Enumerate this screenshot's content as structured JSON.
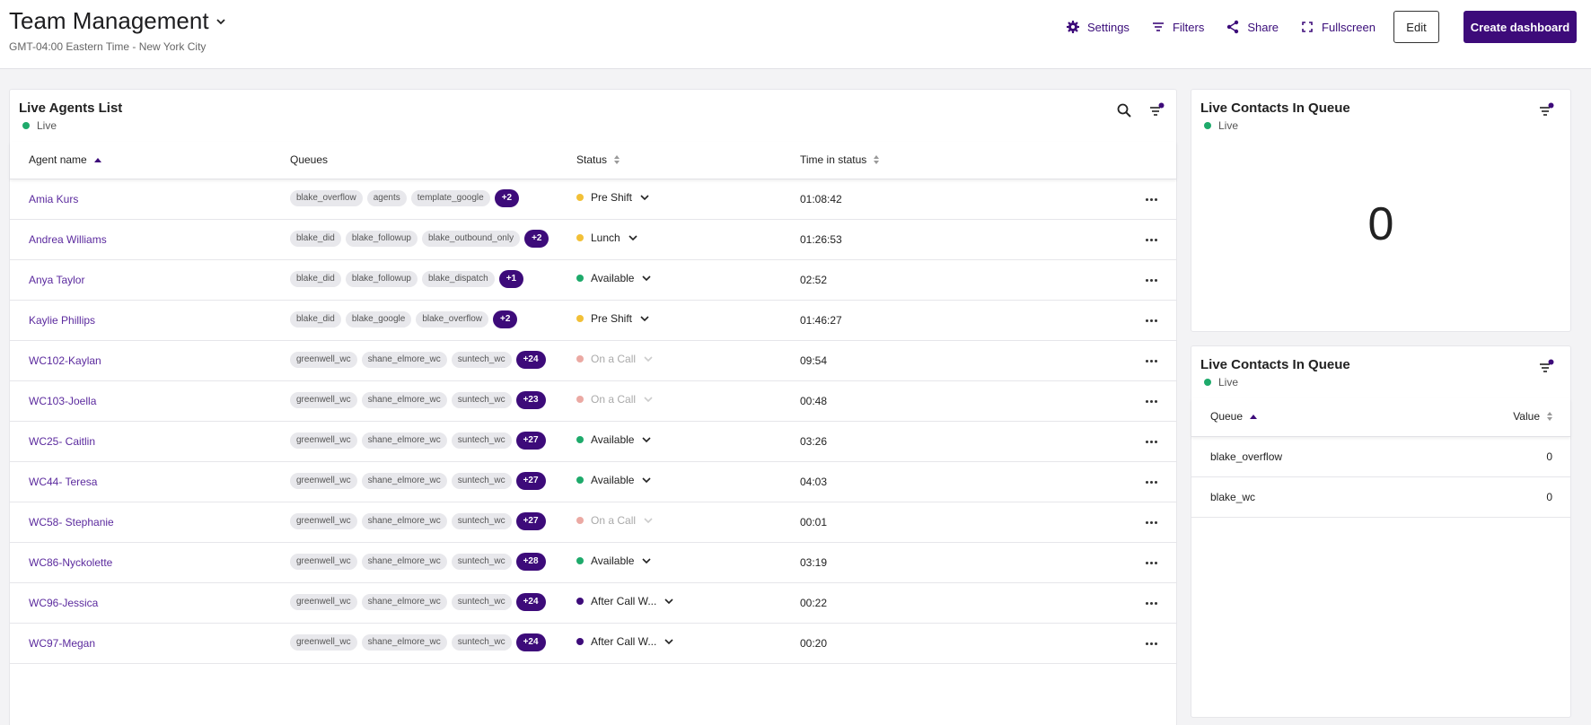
{
  "header": {
    "title": "Team Management",
    "subtitle": "GMT-04:00 Eastern Time - New York City",
    "actions": {
      "settings": "Settings",
      "filters": "Filters",
      "share": "Share",
      "fullscreen": "Fullscreen",
      "edit": "Edit",
      "create": "Create dashboard"
    }
  },
  "colors": {
    "accent": "#3d0b7a",
    "live": "#1eaa6b",
    "pre_shift": "#f2c037",
    "lunch": "#f2c037",
    "available": "#1eaa6b",
    "on_a_call": "#e6948c",
    "after_call": "#3d0b7a"
  },
  "agents_panel": {
    "title": "Live Agents List",
    "live": "Live",
    "columns": [
      "Agent name",
      "Queues",
      "Status",
      "Time in status"
    ],
    "rows": [
      {
        "name": "Amia Kurs",
        "queues": [
          "blake_overflow",
          "agents",
          "template_google"
        ],
        "more": "+2",
        "status": "Pre Shift",
        "status_color": "#f2c037",
        "dim": false,
        "time": "01:08:42"
      },
      {
        "name": "Andrea Williams",
        "queues": [
          "blake_did",
          "blake_followup",
          "blake_outbound_only"
        ],
        "more": "+2",
        "status": "Lunch",
        "status_color": "#f2c037",
        "dim": false,
        "time": "01:26:53"
      },
      {
        "name": "Anya Taylor",
        "queues": [
          "blake_did",
          "blake_followup",
          "blake_dispatch"
        ],
        "more": "+1",
        "status": "Available",
        "status_color": "#1eaa6b",
        "dim": false,
        "time": "02:52"
      },
      {
        "name": "Kaylie Phillips",
        "queues": [
          "blake_did",
          "blake_google",
          "blake_overflow"
        ],
        "more": "+2",
        "status": "Pre Shift",
        "status_color": "#f2c037",
        "dim": false,
        "time": "01:46:27"
      },
      {
        "name": "WC102-Kaylan",
        "queues": [
          "greenwell_wc",
          "shane_elmore_wc",
          "suntech_wc"
        ],
        "more": "+24",
        "status": "On a Call",
        "status_color": "#e6948c",
        "dim": true,
        "time": "09:54"
      },
      {
        "name": "WC103-Joella",
        "queues": [
          "greenwell_wc",
          "shane_elmore_wc",
          "suntech_wc"
        ],
        "more": "+23",
        "status": "On a Call",
        "status_color": "#e6948c",
        "dim": true,
        "time": "00:48"
      },
      {
        "name": "WC25- Caitlin",
        "queues": [
          "greenwell_wc",
          "shane_elmore_wc",
          "suntech_wc"
        ],
        "more": "+27",
        "status": "Available",
        "status_color": "#1eaa6b",
        "dim": false,
        "time": "03:26"
      },
      {
        "name": "WC44- Teresa",
        "queues": [
          "greenwell_wc",
          "shane_elmore_wc",
          "suntech_wc"
        ],
        "more": "+27",
        "status": "Available",
        "status_color": "#1eaa6b",
        "dim": false,
        "time": "04:03"
      },
      {
        "name": "WC58- Stephanie",
        "queues": [
          "greenwell_wc",
          "shane_elmore_wc",
          "suntech_wc"
        ],
        "more": "+27",
        "status": "On a Call",
        "status_color": "#e6948c",
        "dim": true,
        "time": "00:01"
      },
      {
        "name": "WC86-Nyckolette",
        "queues": [
          "greenwell_wc",
          "shane_elmore_wc",
          "suntech_wc"
        ],
        "more": "+28",
        "status": "Available",
        "status_color": "#1eaa6b",
        "dim": false,
        "time": "03:19"
      },
      {
        "name": "WC96-Jessica",
        "queues": [
          "greenwell_wc",
          "shane_elmore_wc",
          "suntech_wc"
        ],
        "more": "+24",
        "status": "After Call W...",
        "status_color": "#3d0b7a",
        "dim": false,
        "time": "00:22"
      },
      {
        "name": "WC97-Megan",
        "queues": [
          "greenwell_wc",
          "shane_elmore_wc",
          "suntech_wc"
        ],
        "more": "+24",
        "status": "After Call W...",
        "status_color": "#3d0b7a",
        "dim": false,
        "time": "00:20"
      }
    ]
  },
  "count_panel": {
    "title": "Live Contacts In Queue",
    "live": "Live",
    "value": "0"
  },
  "queue_panel": {
    "title": "Live Contacts In Queue",
    "live": "Live",
    "columns": [
      "Queue",
      "Value"
    ],
    "rows": [
      {
        "queue": "blake_overflow",
        "value": "0"
      },
      {
        "queue": "blake_wc",
        "value": "0"
      }
    ]
  }
}
